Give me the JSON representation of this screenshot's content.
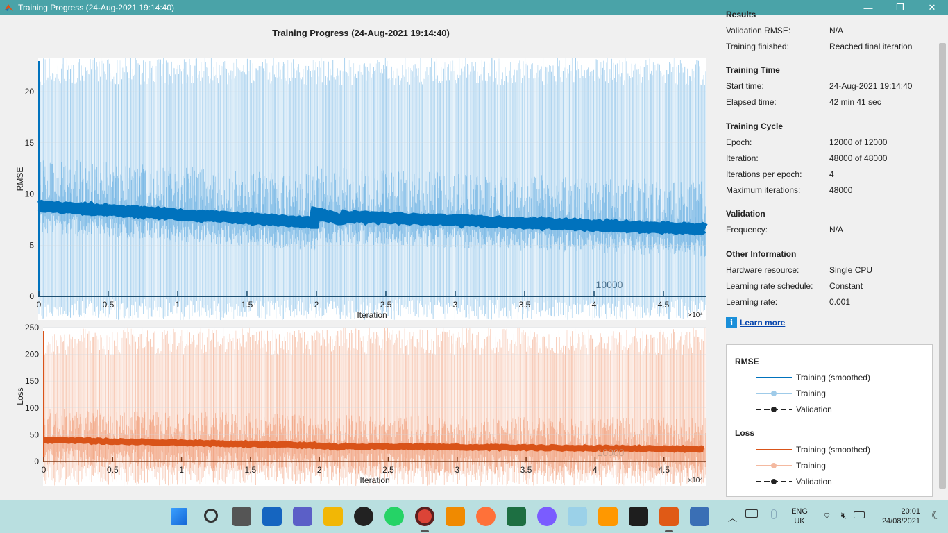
{
  "window": {
    "title": "Training Progress (24-Aug-2021 19:14:40)",
    "minimize_glyph": "—",
    "maximize_glyph": "❐",
    "close_glyph": "✕"
  },
  "plot": {
    "title": "Training Progress (24-Aug-2021 19:14:40)",
    "rmse_ticks_y": [
      "0",
      "5",
      "10",
      "15",
      "20"
    ],
    "rmse_ylabel": "RMSE",
    "loss_ticks_y": [
      "0",
      "50",
      "100",
      "150",
      "200",
      "250"
    ],
    "loss_ylabel": "Loss",
    "x_ticks": [
      "0",
      "0.5",
      "1",
      "1.5",
      "2",
      "2.5",
      "3",
      "3.5",
      "4",
      "4.5"
    ],
    "xlabel": "Iteration",
    "x_multiplier": "×10⁴",
    "epoch_marker": "10000",
    "colors": {
      "rmse_smoothed": "#0072bd",
      "rmse_raw": "#4a9fdc",
      "loss_smoothed": "#d95319",
      "loss_raw": "#ee8a5e"
    }
  },
  "results": {
    "header": "Results",
    "rows": [
      {
        "label": "Validation RMSE:",
        "value": "N/A"
      },
      {
        "label": "Training finished:",
        "value": "Reached final iteration"
      }
    ]
  },
  "training_time": {
    "header": "Training Time",
    "rows": [
      {
        "label": "Start time:",
        "value": "24-Aug-2021 19:14:40"
      },
      {
        "label": "Elapsed time:",
        "value": "42 min 41 sec"
      }
    ]
  },
  "training_cycle": {
    "header": "Training Cycle",
    "rows": [
      {
        "label": "Epoch:",
        "value": "12000 of 12000"
      },
      {
        "label": "Iteration:",
        "value": "48000 of 48000"
      },
      {
        "label": "Iterations per epoch:",
        "value": "4"
      },
      {
        "label": "Maximum iterations:",
        "value": "48000"
      }
    ]
  },
  "validation": {
    "header": "Validation",
    "rows": [
      {
        "label": "Frequency:",
        "value": "N/A"
      }
    ]
  },
  "other_info": {
    "header": "Other Information",
    "rows": [
      {
        "label": "Hardware resource:",
        "value": "Single CPU"
      },
      {
        "label": "Learning rate schedule:",
        "value": "Constant"
      },
      {
        "label": "Learning rate:",
        "value": "0.001"
      }
    ]
  },
  "learn_more": {
    "icon": "i",
    "label": "Learn more"
  },
  "legend": {
    "rmse_header": "RMSE",
    "loss_header": "Loss",
    "rmse_items": [
      "Training (smoothed)",
      "Training",
      "Validation"
    ],
    "loss_items": [
      "Training (smoothed)",
      "Training",
      "Validation"
    ]
  },
  "taskbar": {
    "icons": [
      "windows-start-icon",
      "search-icon",
      "task-view-icon",
      "widgets-icon",
      "teams-chat-icon",
      "file-explorer-icon",
      "settings-icon",
      "whatsapp-icon",
      "chrome-icon",
      "vlc-icon",
      "firefox-icon",
      "excel-icon",
      "messenger-icon",
      "photos-icon",
      "sublime-text-icon",
      "terminal-icon",
      "matlab-icon",
      "remote-desktop-icon"
    ],
    "language_top": "ENG",
    "language_bottom": "UK",
    "time": "20:01",
    "date": "24/08/2021"
  }
}
